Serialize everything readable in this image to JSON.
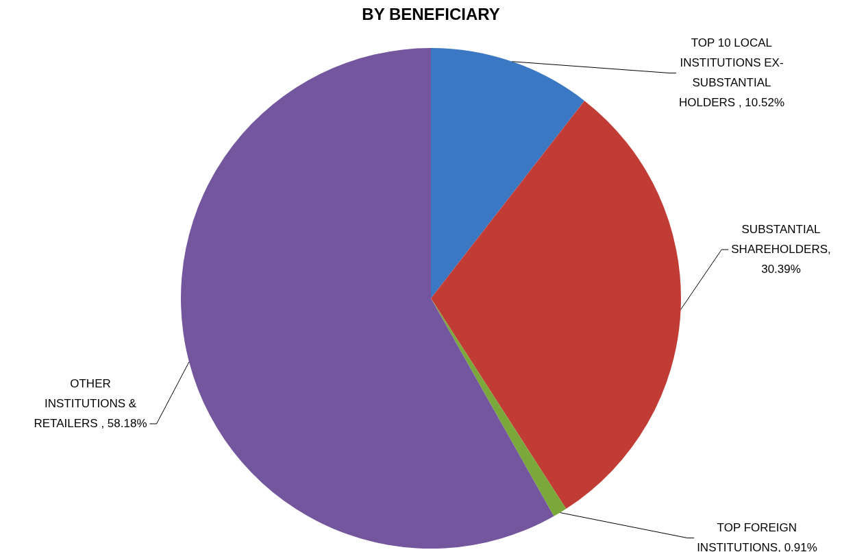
{
  "chart_data": {
    "type": "pie",
    "title": "BY BENEFICIARY",
    "categories": [
      "TOP 10 LOCAL INSTITUTIONS EX-SUBSTANTIAL HOLDERS ",
      "SUBSTANTIAL SHAREHOLDERS",
      "TOP FOREIGN INSTITUTIONS",
      "OTHER INSTITUTIONS & RETAILERS "
    ],
    "values": [
      10.52,
      30.39,
      0.91,
      58.18
    ],
    "colors": [
      "#3b78c4",
      "#c23c36",
      "#7aa83a",
      "#74569e"
    ],
    "value_labels": [
      ", 10.52%",
      ", 30.39%",
      ", 0.91%",
      ", 58.18%"
    ],
    "legend": false
  }
}
